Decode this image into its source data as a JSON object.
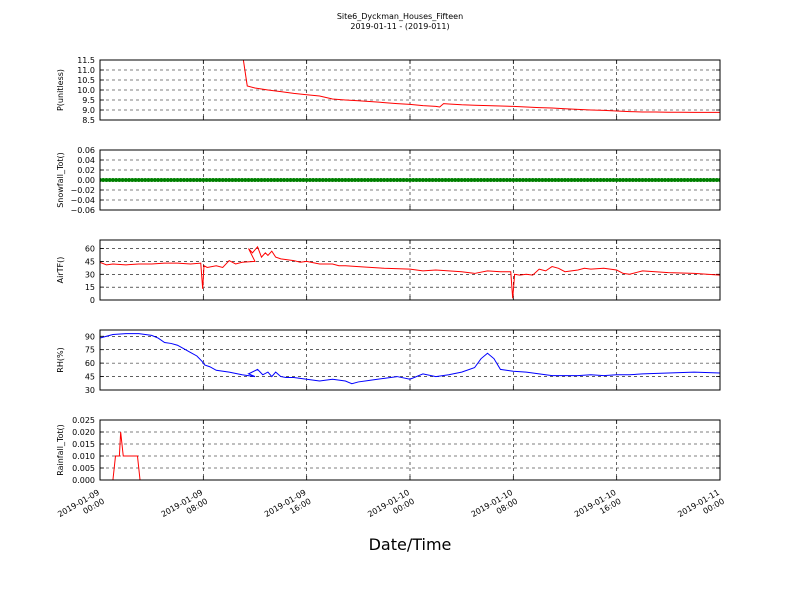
{
  "figure": {
    "title_line1": "Site6_Dyckman_Houses_Fifteen",
    "title_line2": "2019-01-11 - (2019-011)",
    "xlabel": "Date/Time",
    "x_tick_labels": [
      [
        "2019-01-09",
        "00:00"
      ],
      [
        "2019-01-09",
        "08:00"
      ],
      [
        "2019-01-09",
        "16:00"
      ],
      [
        "2019-01-10",
        "00:00"
      ],
      [
        "2019-01-10",
        "08:00"
      ],
      [
        "2019-01-10",
        "16:00"
      ],
      [
        "2019-01-11",
        "00:00"
      ]
    ]
  },
  "chart_data": [
    {
      "type": "line",
      "ylabel": "P(unitless)",
      "ylim": [
        8.5,
        11.5
      ],
      "yticks": [
        "8.5",
        "9.0",
        "9.5",
        "10.0",
        "10.5",
        "11.0",
        "11.5"
      ],
      "grid": true,
      "color": "#ff0000",
      "xlim_hours": [
        0,
        48
      ],
      "series": [
        {
          "x": [
            11.1,
            11.4,
            12,
            13,
            14,
            15,
            16,
            17,
            18,
            19,
            20,
            21,
            22,
            23,
            24,
            25,
            26,
            26.3,
            26.6,
            27,
            28,
            29,
            30,
            31,
            32,
            33,
            34,
            35,
            36,
            37,
            38,
            39,
            40,
            41,
            42,
            43,
            44,
            45,
            46,
            47,
            48
          ],
          "y": [
            11.5,
            10.2,
            10.1,
            10.0,
            9.92,
            9.83,
            9.76,
            9.7,
            9.55,
            9.5,
            9.46,
            9.42,
            9.37,
            9.32,
            9.28,
            9.22,
            9.18,
            9.15,
            9.32,
            9.3,
            9.26,
            9.24,
            9.22,
            9.2,
            9.18,
            9.15,
            9.12,
            9.1,
            9.06,
            9.03,
            9.0,
            8.98,
            8.95,
            8.92,
            8.9,
            8.9,
            8.89,
            8.89,
            8.88,
            8.88,
            8.88
          ]
        }
      ]
    },
    {
      "type": "scatter",
      "ylabel": "Snowfall_Tot()",
      "ylim": [
        -0.06,
        0.06
      ],
      "yticks": [
        "−0.06",
        "−0.04",
        "−0.02",
        "0.00",
        "0.02",
        "0.04",
        "0.06"
      ],
      "grid": true,
      "color": "#008000",
      "xlim_hours": [
        0,
        48
      ],
      "series": [
        {
          "x_start": 0,
          "x_end": 48,
          "x_step": 0.25,
          "value": 0.0
        }
      ]
    },
    {
      "type": "line",
      "ylabel": "AirTF()",
      "ylim": [
        0,
        70
      ],
      "yticks": [
        "0",
        "15",
        "30",
        "45",
        "60"
      ],
      "grid": true,
      "color": "#ff0000",
      "xlim_hours": [
        0,
        48
      ],
      "series": [
        {
          "x": [
            0,
            0.5,
            1,
            2,
            3,
            4,
            5,
            6,
            7,
            7.8,
            7.95,
            8.05,
            8.3,
            9,
            9.5,
            10,
            10.5,
            11,
            12,
            11.5,
            11.8,
            12.2,
            12.5,
            12.8,
            13,
            13.3,
            13.6,
            14,
            14.5,
            15,
            15.5,
            16,
            17,
            18,
            18.5,
            19,
            20,
            22,
            24,
            25,
            26,
            28,
            29,
            30,
            31,
            31.8,
            31.95,
            32.1,
            32.5,
            33,
            33.5,
            34,
            34.5,
            35,
            35.5,
            36,
            36.5,
            37,
            37.5,
            38,
            39,
            40,
            40.5,
            41,
            41.5,
            42,
            44,
            46,
            48
          ],
          "y": [
            44,
            41,
            42,
            41,
            42,
            42,
            43,
            43,
            42,
            43,
            13,
            40,
            38,
            40,
            38,
            46,
            42,
            44,
            45,
            60,
            55,
            62,
            50,
            55,
            52,
            57,
            50,
            48,
            47,
            46,
            44,
            45,
            42,
            42,
            40,
            40,
            39,
            37,
            36,
            34,
            35,
            33,
            31,
            34,
            33,
            33,
            2,
            30,
            29,
            30,
            29,
            36,
            34,
            39,
            37,
            33,
            34,
            35,
            37,
            36,
            37,
            35,
            31,
            30,
            32,
            34,
            32,
            31,
            29
          ]
        }
      ]
    },
    {
      "type": "line",
      "ylabel": "RH(%)",
      "ylim": [
        30,
        97
      ],
      "yticks": [
        "30",
        "45",
        "60",
        "75",
        "90"
      ],
      "grid": true,
      "color": "#0000ff",
      "xlim_hours": [
        0,
        48
      ],
      "series": [
        {
          "x": [
            0,
            0.5,
            1,
            2,
            3,
            4,
            4.5,
            5,
            5.5,
            6,
            6.5,
            7,
            7.5,
            7.9,
            8.1,
            8.5,
            9,
            10,
            11,
            12,
            11.5,
            12.2,
            12.6,
            13,
            13.3,
            13.6,
            14,
            14.4,
            15,
            16,
            17,
            18,
            18.5,
            19,
            19.5,
            20,
            21,
            22,
            23,
            24,
            25,
            26,
            27,
            28,
            29,
            29.5,
            30,
            30.5,
            31,
            32,
            33,
            34,
            35,
            36,
            37,
            38,
            39,
            40,
            41,
            42,
            44,
            46,
            48
          ],
          "y": [
            88,
            90,
            92,
            93,
            93,
            91,
            88,
            83,
            82,
            80,
            76,
            72,
            68,
            62,
            58,
            56,
            52,
            50,
            47,
            45,
            48,
            53,
            47,
            50,
            45,
            50,
            45,
            44,
            44,
            42,
            40,
            42,
            41,
            40,
            37,
            39,
            41,
            43,
            45,
            42,
            48,
            45,
            47,
            50,
            55,
            65,
            71,
            65,
            53,
            51,
            50,
            48,
            46,
            46,
            46,
            47,
            46,
            47,
            47,
            48,
            49,
            50,
            49
          ]
        }
      ]
    },
    {
      "type": "line",
      "ylabel": "Rainfall_Tot()",
      "ylim": [
        0,
        0.025
      ],
      "yticks": [
        "0.000",
        "0.005",
        "0.010",
        "0.015",
        "0.020",
        "0.025"
      ],
      "grid": true,
      "color": "#ff0000",
      "xlim_hours": [
        0,
        48
      ],
      "series": [
        {
          "x": [
            0,
            1,
            1.2,
            1.5,
            1.6,
            1.8,
            2.9,
            3.1,
            48
          ],
          "y": [
            0,
            0,
            0.01,
            0.01,
            0.02,
            0.01,
            0.01,
            0,
            0
          ]
        }
      ]
    }
  ]
}
